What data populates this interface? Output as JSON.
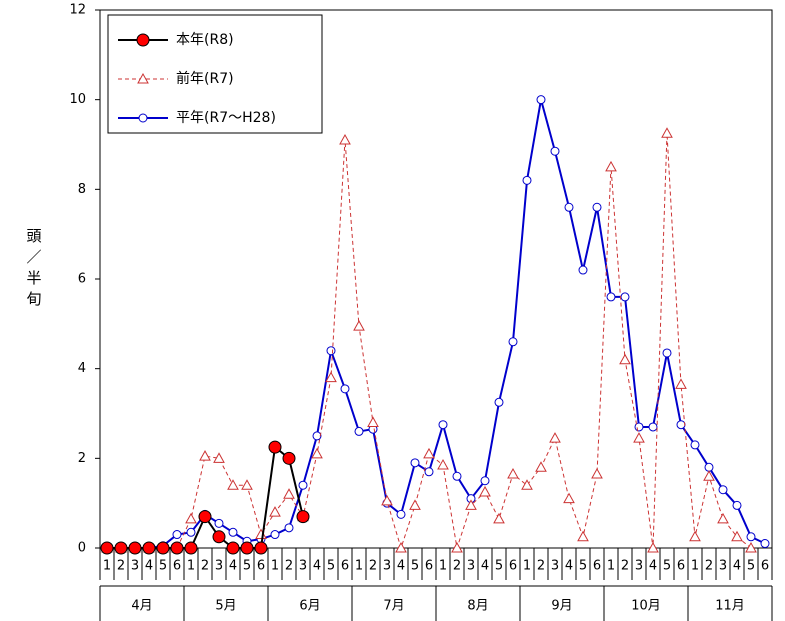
{
  "chart_data": {
    "type": "line",
    "y_label": "頭／半旬",
    "categories": [
      "1",
      "2",
      "3",
      "4",
      "5",
      "6",
      "1",
      "2",
      "3",
      "4",
      "5",
      "6",
      "1",
      "2",
      "3",
      "4",
      "5",
      "6",
      "1",
      "2",
      "3",
      "4",
      "5",
      "6",
      "1",
      "2",
      "3",
      "4",
      "5",
      "6",
      "1",
      "2",
      "3",
      "4",
      "5",
      "6",
      "1",
      "2",
      "3",
      "4",
      "5",
      "6",
      "1",
      "2",
      "3",
      "4",
      "5",
      "6"
    ],
    "groups": [
      "4月",
      "5月",
      "6月",
      "7月",
      "8月",
      "9月",
      "10月",
      "11月"
    ],
    "ylim": [
      0,
      12
    ],
    "yticks": [
      0,
      2,
      4,
      6,
      8,
      10,
      12
    ],
    "legend": "top-left",
    "series": [
      {
        "name": "本年(R8)",
        "color": "#000000",
        "marker": "circle",
        "marker_fill": "#ff0000",
        "line_style": "solid",
        "values": [
          0,
          0,
          0,
          0,
          0,
          0,
          0,
          0.7,
          0.25,
          0,
          0,
          0,
          2.25,
          2.0,
          0.7,
          null,
          null,
          null,
          null,
          null,
          null,
          null,
          null,
          null,
          null,
          null,
          null,
          null,
          null,
          null,
          null,
          null,
          null,
          null,
          null,
          null,
          null,
          null,
          null,
          null,
          null,
          null,
          null,
          null,
          null,
          null,
          null,
          null
        ]
      },
      {
        "name": "前年(R7)",
        "color": "#cc3333",
        "marker": "triangle",
        "marker_fill": "#ffffff",
        "line_style": "dashed",
        "values": [
          0,
          0,
          0,
          0,
          0,
          0,
          0.65,
          2.05,
          2.0,
          1.4,
          1.4,
          0.3,
          0.8,
          1.2,
          0.7,
          2.1,
          3.8,
          9.1,
          4.95,
          2.8,
          1.05,
          0,
          0.95,
          2.1,
          1.85,
          0,
          0.95,
          1.25,
          0.65,
          1.65,
          1.4,
          1.8,
          2.45,
          1.1,
          0.25,
          1.65,
          8.5,
          4.2,
          2.45,
          0,
          9.25,
          3.65,
          0.25,
          1.6,
          0.65,
          0.25,
          0,
          null
        ]
      },
      {
        "name": "平年(R7～H28)",
        "color": "#0000cc",
        "marker": "circle",
        "marker_fill": "#ffffff",
        "line_style": "solid",
        "values": [
          0,
          0,
          0,
          0,
          0.05,
          0.3,
          0.35,
          0.75,
          0.55,
          0.35,
          0.15,
          0.2,
          0.3,
          0.45,
          1.4,
          2.5,
          4.4,
          3.55,
          2.6,
          2.65,
          1.0,
          0.75,
          1.9,
          1.7,
          2.75,
          1.6,
          1.1,
          1.5,
          3.25,
          4.6,
          8.2,
          10.0,
          8.85,
          7.6,
          6.2,
          7.6,
          5.6,
          5.6,
          2.7,
          2.7,
          4.35,
          2.75,
          2.3,
          1.8,
          1.3,
          0.95,
          0.25,
          0.1
        ]
      }
    ]
  }
}
